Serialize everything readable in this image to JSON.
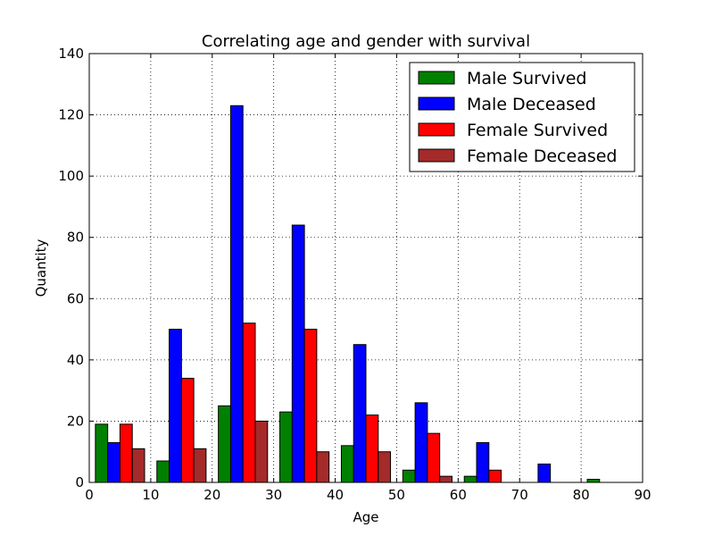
{
  "chart_data": {
    "type": "bar",
    "title": "Correlating age and gender with survival",
    "xlabel": "Age",
    "ylabel": "Quantity",
    "xlim": [
      0,
      90
    ],
    "ylim": [
      0,
      140
    ],
    "xticks": [
      0,
      10,
      20,
      30,
      40,
      50,
      60,
      70,
      80,
      90
    ],
    "yticks": [
      0,
      20,
      40,
      60,
      80,
      100,
      120,
      140
    ],
    "grid": true,
    "legend_position": "top-right",
    "bin_starts": [
      0,
      10,
      20,
      30,
      40,
      50,
      60,
      70,
      80
    ],
    "bin_width": 10,
    "series": [
      {
        "name": "Male Survived",
        "color": "#008000",
        "values": [
          19,
          7,
          25,
          23,
          12,
          4,
          2,
          0,
          1
        ]
      },
      {
        "name": "Male Deceased",
        "color": "#0000ff",
        "values": [
          13,
          50,
          123,
          84,
          45,
          26,
          13,
          6,
          0
        ]
      },
      {
        "name": "Female Survived",
        "color": "#ff0000",
        "values": [
          19,
          34,
          52,
          50,
          22,
          16,
          4,
          0,
          0
        ]
      },
      {
        "name": "Female Deceased",
        "color": "#a52a2a",
        "values": [
          11,
          11,
          20,
          10,
          10,
          2,
          0,
          0,
          0
        ]
      }
    ]
  }
}
